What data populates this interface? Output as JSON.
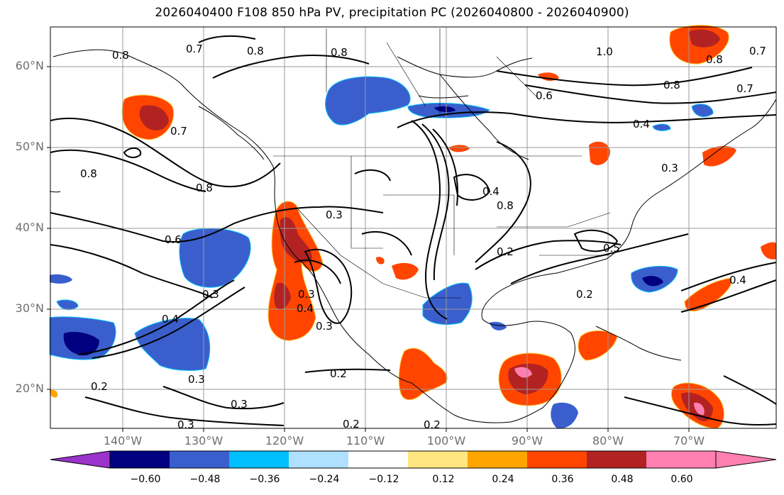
{
  "title": "2026040400 F108 850 hPa PV, precipitation PC (2026040800 - 2026040900)",
  "map": {
    "lat_labels": [
      "60°N",
      "50°N",
      "40°N",
      "30°N",
      "20°N"
    ],
    "lon_labels": [
      "140°W",
      "130°W",
      "120°W",
      "110°W",
      "100°W",
      "90°W",
      "80°W",
      "70°W"
    ],
    "contour_labels": [
      "0.8",
      "0.7",
      "0.8",
      "0.8",
      "1.0",
      "0.7",
      "0.8",
      "0.6",
      "0.8",
      "0.7",
      "0.8",
      "0.7",
      "0.8",
      "0.4",
      "0.3",
      "0.3",
      "0.6",
      "0.3",
      "0.4",
      "0.3",
      "0.4",
      "0.3",
      "0.8",
      "0.4",
      "0.2",
      "0.5",
      "0.2",
      "0.4",
      "0.2",
      "0.3",
      "0.2",
      "0.3",
      "0.3",
      "0.2",
      "0.2"
    ],
    "colors": {
      "coast": "#000000",
      "grid": "#9a9a9a",
      "contour": "#000000"
    }
  },
  "colorbar": {
    "ticks": [
      "−0.60",
      "−0.48",
      "−0.36",
      "−0.24",
      "−0.12",
      "0.12",
      "0.24",
      "0.36",
      "0.48",
      "0.60"
    ],
    "colors": [
      "#9933cc",
      "#000080",
      "#3a5fcd",
      "#00bfff",
      "#b0e0ff",
      "#ffffff",
      "#ffe680",
      "#ffa500",
      "#ff4500",
      "#b22222",
      "#ff80b0"
    ]
  }
}
